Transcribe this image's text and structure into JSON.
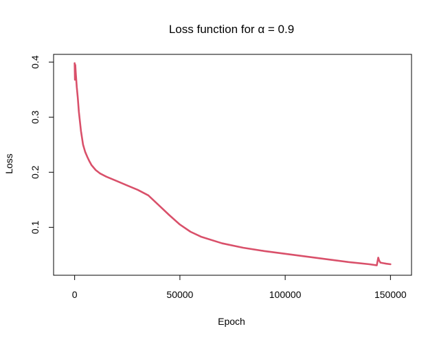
{
  "chart_data": {
    "type": "line",
    "title_prefix": "Loss function for ",
    "title_symbol": "α",
    "title_suffix": " = 0.9",
    "xlabel": "Epoch",
    "ylabel": "Loss",
    "xlim": [
      -10000,
      160000
    ],
    "ylim": [
      0.013,
      0.414
    ],
    "x_ticks": [
      0,
      50000,
      100000,
      150000
    ],
    "x_tick_labels": [
      "0",
      "50000",
      "100000",
      "150000"
    ],
    "y_ticks": [
      0.1,
      0.2,
      0.3,
      0.4
    ],
    "y_tick_labels": [
      "0.1",
      "0.2",
      "0.3",
      "0.4"
    ],
    "grid": false,
    "legend": "none",
    "series_color": "#d9506a",
    "series": [
      {
        "x": [
          0,
          150,
          300,
          500,
          1000,
          1500,
          2000,
          3000,
          4000,
          5000,
          6000,
          7000,
          8000,
          10000,
          12000,
          15000,
          20000,
          25000,
          30000,
          35000,
          40000,
          45000,
          50000,
          55000,
          60000,
          70000,
          80000,
          90000,
          100000,
          110000,
          120000,
          130000,
          140000,
          143500,
          144200,
          144600,
          145200,
          146500,
          148000,
          150000
        ],
        "y": [
          0.398,
          0.368,
          0.395,
          0.382,
          0.355,
          0.335,
          0.31,
          0.275,
          0.25,
          0.237,
          0.228,
          0.22,
          0.213,
          0.204,
          0.198,
          0.192,
          0.184,
          0.176,
          0.168,
          0.158,
          0.14,
          0.122,
          0.105,
          0.092,
          0.083,
          0.071,
          0.063,
          0.057,
          0.052,
          0.047,
          0.042,
          0.037,
          0.033,
          0.031,
          0.045,
          0.04,
          0.036,
          0.035,
          0.034,
          0.033
        ]
      }
    ]
  }
}
